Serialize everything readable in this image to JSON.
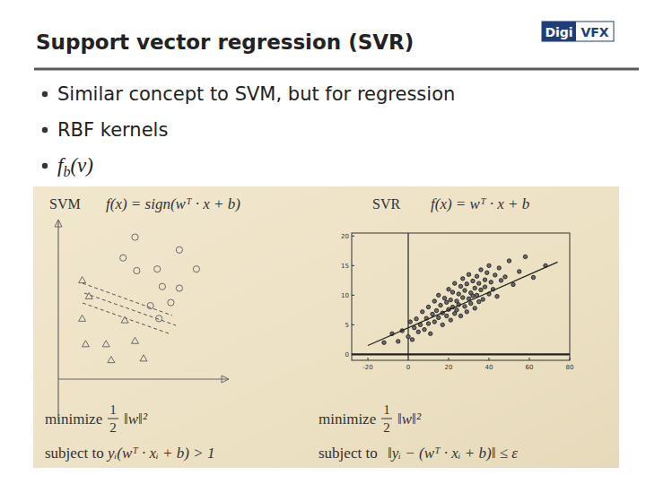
{
  "slide": {
    "title": "Support vector regression (SVR)",
    "logo": [
      "Digi",
      "VFX"
    ],
    "bullets": [
      {
        "text": "Similar concept to SVM, but for regression"
      },
      {
        "text": "RBF kernels"
      },
      {
        "text": "f",
        "sub": "b",
        "after": "(v)"
      }
    ],
    "panels": [
      {
        "label": "SVM",
        "formula": "f(x) = sign(wᵀ · x + b)",
        "objective": {
          "verb": "minimize",
          "num": "1",
          "den": "2",
          "expr": "‖w‖²"
        },
        "constraint": {
          "verb": "subject to",
          "expr": "yᵢ(wᵀ · xᵢ + b) > 1"
        }
      },
      {
        "label": "SVR",
        "formula": "f(x) = wᵀ · x + b",
        "objective": {
          "verb": "minimize",
          "num": "1",
          "den": "2",
          "expr": "‖w‖²"
        },
        "constraint": {
          "verb": "subject to",
          "expr": "‖yᵢ − (wᵀ · xᵢ + b)‖ ≤ ε"
        }
      }
    ]
  },
  "chart_data": [
    {
      "type": "scatter",
      "tick_labels": false,
      "xlim": [
        0,
        10
      ],
      "ylim": [
        0,
        10
      ],
      "series": [
        {
          "marker": "circle",
          "color": "#6a6a6a",
          "x": [
            4.5,
            7.1,
            3.8,
            4.6,
            5.8,
            8.1,
            7.1,
            6.1,
            6.6,
            5.4,
            5.9
          ],
          "values": [
            8.9,
            8.1,
            7.6,
            6.8,
            6.9,
            6.9,
            5.7,
            5.8,
            4.8,
            4.6,
            3.8
          ]
        },
        {
          "marker": "triangle",
          "color": "#6a6a6a",
          "x": [
            1.4,
            1.8,
            1.4,
            3.9,
            2.8,
            1.6,
            3.1,
            4.5,
            5.0
          ],
          "values": [
            6.2,
            5.2,
            3.8,
            3.7,
            2.2,
            2.2,
            1.2,
            2.4,
            1.3
          ]
        }
      ]
    },
    {
      "type": "scatter",
      "xlim": [
        -28,
        80
      ],
      "ylim": [
        -1,
        20.5
      ],
      "xticks": [
        -20,
        0,
        20,
        40,
        60,
        80
      ],
      "yticks": [
        0,
        5,
        10,
        15,
        20
      ],
      "series": [
        {
          "type": "scatter",
          "marker": "circle",
          "color": "#222222",
          "x": [
            -12,
            -8,
            -5,
            -3,
            0,
            1,
            2,
            3,
            4,
            5,
            6,
            7,
            8,
            9,
            10,
            10,
            11,
            12,
            13,
            13,
            14,
            15,
            15,
            16,
            17,
            17,
            18,
            19,
            19,
            20,
            20,
            21,
            21,
            22,
            22,
            23,
            23,
            24,
            24,
            25,
            25,
            26,
            26,
            27,
            27,
            28,
            28,
            29,
            29,
            30,
            30,
            31,
            31,
            32,
            32,
            33,
            33,
            34,
            34,
            35,
            35,
            36,
            36,
            37,
            38,
            38,
            39,
            40,
            40,
            41,
            42,
            43,
            44,
            45,
            46,
            48,
            50,
            52,
            55,
            58,
            62,
            68
          ],
          "values": [
            2.0,
            3.5,
            2.2,
            4.0,
            3.0,
            5.5,
            2.5,
            4.5,
            6.0,
            3.8,
            5.0,
            7.2,
            4.2,
            6.1,
            5.2,
            8.0,
            3.5,
            6.8,
            9.0,
            5.5,
            7.4,
            6.2,
            10.0,
            8.3,
            5.0,
            7.0,
            9.5,
            6.5,
            8.8,
            7.6,
            11.0,
            5.8,
            9.2,
            8.0,
            10.5,
            6.9,
            12.0,
            9.0,
            7.5,
            10.2,
            8.4,
            11.5,
            6.5,
            9.6,
            12.8,
            8.1,
            10.8,
            7.2,
            11.9,
            9.4,
            13.5,
            10.4,
            8.6,
            12.4,
            9.9,
            7.8,
            11.2,
            13.2,
            10.0,
            8.9,
            12.0,
            14.3,
            10.9,
            9.3,
            12.6,
            11.4,
            13.8,
            10.2,
            15.0,
            12.2,
            11.0,
            13.4,
            9.8,
            14.6,
            12.5,
            13.1,
            15.8,
            11.8,
            14.0,
            16.5,
            13.0,
            15.0
          ]
        },
        {
          "type": "line",
          "color": "#222222",
          "x": [
            -20,
            74
          ],
          "values": [
            1.5,
            15.6
          ]
        }
      ]
    }
  ]
}
